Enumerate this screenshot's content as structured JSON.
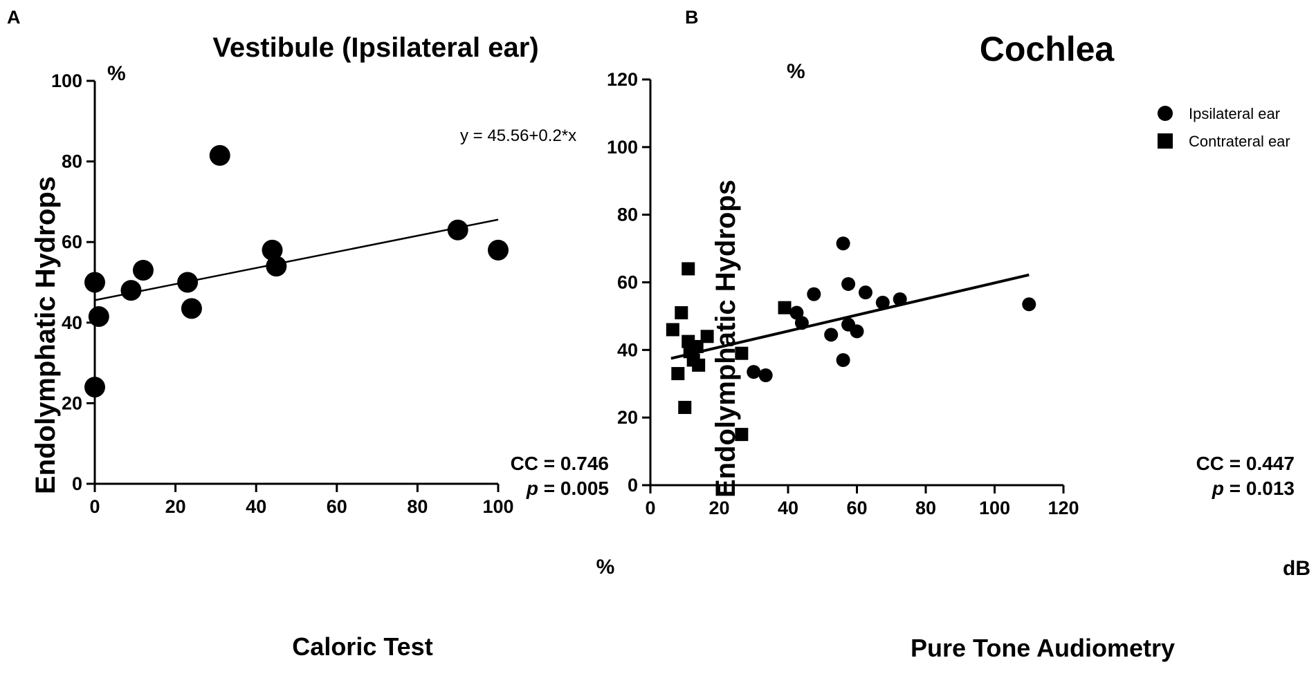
{
  "chart_data": [
    {
      "panel": "A",
      "type": "scatter",
      "title": "Vestibule (Ipsilateral ear)",
      "xlabel": "Caloric Test",
      "ylabel": "Endolymphatic Hydrops",
      "x_unit": "%",
      "y_unit": "%",
      "xlim": [
        0,
        100
      ],
      "ylim": [
        0,
        100
      ],
      "xticks": [
        0,
        20,
        40,
        60,
        80,
        100
      ],
      "yticks": [
        0,
        20,
        40,
        60,
        80,
        100
      ],
      "series": [
        {
          "name": "Ipsilateral ear",
          "marker": "circle",
          "x": [
            0,
            0,
            1,
            9,
            12,
            23,
            24,
            31,
            44,
            45,
            90,
            100
          ],
          "y": [
            50,
            24,
            41.5,
            48,
            53,
            50,
            43.5,
            81.5,
            58,
            54,
            63,
            58
          ]
        }
      ],
      "fit": {
        "intercept": 45.56,
        "slope": 0.2,
        "x_range": [
          0,
          100
        ]
      },
      "equation": "y = 45.56+0.2*x",
      "cc": "CC = 0.746",
      "p_label": "p",
      "p_value": " = 0.005"
    },
    {
      "panel": "B",
      "type": "scatter",
      "title": "Cochlea",
      "xlabel": "Pure Tone Audiometry",
      "ylabel": "Endolymphatic Hydrops",
      "x_unit": "dB",
      "y_unit": "%",
      "xlim": [
        0,
        120
      ],
      "ylim": [
        0,
        120
      ],
      "xticks": [
        0,
        20,
        40,
        60,
        80,
        100,
        120
      ],
      "yticks": [
        0,
        20,
        40,
        60,
        80,
        100,
        120
      ],
      "legend": [
        "Ipsilateral ear",
        "Contrateral ear"
      ],
      "series": [
        {
          "name": "Ipsilateral ear",
          "marker": "circle",
          "x": [
            30,
            33.5,
            42.5,
            44,
            47.5,
            52.5,
            56,
            56,
            57.5,
            57.5,
            60,
            62.5,
            67.5,
            72.5,
            110
          ],
          "y": [
            33.5,
            32.5,
            51,
            48,
            56.5,
            44.5,
            71.5,
            37,
            59.5,
            47.5,
            45.5,
            57,
            54,
            55,
            53.5
          ]
        },
        {
          "name": "Contrateral ear",
          "marker": "square",
          "x": [
            6.5,
            8,
            9,
            10,
            11,
            11,
            11.5,
            12.5,
            13.5,
            14,
            16.5,
            26.5,
            26.5,
            39
          ],
          "y": [
            46,
            33,
            51,
            23,
            64,
            42.5,
            39.5,
            37,
            41,
            35.5,
            44,
            39,
            15,
            52.5
          ]
        }
      ],
      "fit": {
        "x_range": [
          6,
          110
        ],
        "y_range": [
          37.5,
          62.2
        ]
      },
      "cc": "CC = 0.447",
      "p_label": "p",
      "p_value": " = 0.013"
    }
  ]
}
